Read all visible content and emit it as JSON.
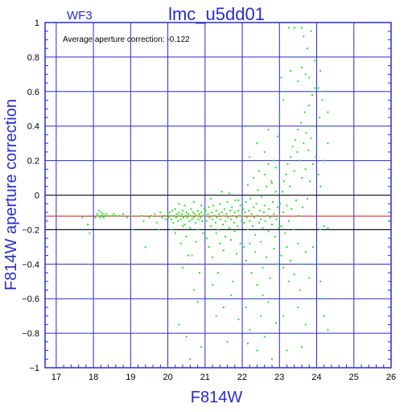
{
  "chart_data": {
    "type": "scatter",
    "title": "lmc_u5dd01",
    "subtitle": "WF3",
    "xlabel": "F814W",
    "ylabel": "F814W aperture correction",
    "annotation": "Average aperture correction: -0.122",
    "mean_line": -0.122,
    "xlim": [
      16.7,
      26.0
    ],
    "ylim": [
      -1,
      1
    ],
    "x_ticks": [
      17,
      18,
      19,
      20,
      21,
      22,
      23,
      24,
      25,
      26
    ],
    "y_ticks": [
      -1,
      -0.8,
      -0.6,
      -0.4,
      -0.2,
      0,
      0.2,
      0.4,
      0.6,
      0.8,
      1
    ],
    "y_tick_labels": [
      "−1",
      "−0.8",
      "−0.6",
      "−0.4",
      "−0.2",
      "0",
      "0.2",
      "0.4",
      "0.6",
      "0.8",
      "1"
    ],
    "grid": true,
    "colors": {
      "frame": "#2a2ad6",
      "points": "#22e822",
      "mean_line": "#e01010",
      "zero_line": "#000000",
      "text": "#2a2ad6"
    },
    "points": [
      [
        17.7,
        -0.13
      ],
      [
        17.85,
        -0.17
      ],
      [
        17.9,
        -0.22
      ],
      [
        18.05,
        -0.13
      ],
      [
        18.1,
        -0.11
      ],
      [
        18.12,
        -0.12
      ],
      [
        18.15,
        -0.09
      ],
      [
        18.18,
        -0.13
      ],
      [
        18.2,
        -0.12
      ],
      [
        18.22,
        -0.1
      ],
      [
        18.25,
        -0.11
      ],
      [
        18.28,
        -0.13
      ],
      [
        18.3,
        -0.12
      ],
      [
        18.35,
        -0.11
      ],
      [
        18.4,
        -0.12
      ],
      [
        18.5,
        -0.12
      ],
      [
        18.55,
        -0.11
      ],
      [
        18.6,
        -0.12
      ],
      [
        18.7,
        -0.12
      ],
      [
        18.8,
        -0.11
      ],
      [
        18.9,
        -0.13
      ],
      [
        19.0,
        -0.12
      ],
      [
        19.05,
        -0.2
      ],
      [
        19.3,
        -0.12
      ],
      [
        19.35,
        -0.15
      ],
      [
        19.4,
        -0.3
      ],
      [
        19.5,
        -0.13
      ],
      [
        19.55,
        -0.12
      ],
      [
        19.65,
        -0.11
      ],
      [
        19.7,
        -0.16
      ],
      [
        19.75,
        -0.2
      ],
      [
        19.8,
        -0.1
      ],
      [
        19.85,
        -0.13
      ],
      [
        19.9,
        -0.12
      ],
      [
        19.95,
        -0.14
      ],
      [
        20.0,
        -0.11
      ],
      [
        20.02,
        -0.13
      ],
      [
        20.05,
        -0.1
      ],
      [
        20.08,
        -0.12
      ],
      [
        20.1,
        -0.14
      ],
      [
        20.12,
        -0.09
      ],
      [
        20.15,
        -0.16
      ],
      [
        20.18,
        -0.12
      ],
      [
        20.2,
        -0.08
      ],
      [
        20.22,
        -0.13
      ],
      [
        20.25,
        -0.11
      ],
      [
        20.28,
        -0.15
      ],
      [
        20.3,
        -0.1
      ],
      [
        20.32,
        -0.12
      ],
      [
        20.35,
        -0.14
      ],
      [
        20.38,
        -0.11
      ],
      [
        20.4,
        -0.09
      ],
      [
        20.42,
        -0.13
      ],
      [
        20.45,
        -0.17
      ],
      [
        20.48,
        -0.12
      ],
      [
        20.5,
        -0.1
      ],
      [
        20.52,
        -0.13
      ],
      [
        20.55,
        -0.11
      ],
      [
        20.58,
        -0.15
      ],
      [
        20.6,
        -0.12
      ],
      [
        20.62,
        -0.08
      ],
      [
        20.65,
        -0.14
      ],
      [
        20.68,
        -0.1
      ],
      [
        20.7,
        -0.13
      ],
      [
        20.72,
        -0.11
      ],
      [
        20.75,
        -0.16
      ],
      [
        20.78,
        -0.12
      ],
      [
        20.8,
        -0.09
      ],
      [
        20.82,
        -0.14
      ],
      [
        20.85,
        -0.11
      ],
      [
        20.88,
        -0.13
      ],
      [
        20.9,
        -0.1
      ],
      [
        20.92,
        -0.15
      ],
      [
        20.95,
        -0.12
      ],
      [
        20.98,
        -0.08
      ],
      [
        20.1,
        -0.2
      ],
      [
        20.2,
        -0.22
      ],
      [
        20.3,
        -0.05
      ],
      [
        20.35,
        -0.28
      ],
      [
        20.4,
        -0.18
      ],
      [
        20.45,
        -0.06
      ],
      [
        20.5,
        -0.24
      ],
      [
        20.55,
        -0.35
      ],
      [
        20.6,
        -0.19
      ],
      [
        20.7,
        -0.04
      ],
      [
        20.75,
        -0.27
      ],
      [
        20.8,
        -0.2
      ],
      [
        20.85,
        -0.45
      ],
      [
        20.9,
        -0.06
      ],
      [
        20.95,
        -0.22
      ],
      [
        20.3,
        -0.75
      ],
      [
        20.5,
        -0.82
      ],
      [
        20.6,
        -0.95
      ],
      [
        20.7,
        -0.55
      ],
      [
        20.8,
        -0.62
      ],
      [
        20.4,
        -0.42
      ],
      [
        20.9,
        -0.88
      ],
      [
        20.65,
        -0.35
      ],
      [
        21.0,
        -0.12
      ],
      [
        21.02,
        -0.09
      ],
      [
        21.05,
        -0.15
      ],
      [
        21.08,
        -0.11
      ],
      [
        21.1,
        -0.07
      ],
      [
        21.12,
        -0.13
      ],
      [
        21.15,
        -0.18
      ],
      [
        21.18,
        -0.1
      ],
      [
        21.2,
        -0.14
      ],
      [
        21.22,
        -0.06
      ],
      [
        21.25,
        -0.12
      ],
      [
        21.28,
        -0.16
      ],
      [
        21.3,
        -0.09
      ],
      [
        21.32,
        -0.13
      ],
      [
        21.35,
        -0.2
      ],
      [
        21.38,
        -0.11
      ],
      [
        21.4,
        -0.05
      ],
      [
        21.42,
        -0.14
      ],
      [
        21.45,
        -0.1
      ],
      [
        21.48,
        -0.17
      ],
      [
        21.5,
        -0.12
      ],
      [
        21.52,
        -0.08
      ],
      [
        21.55,
        -0.15
      ],
      [
        21.58,
        -0.11
      ],
      [
        21.6,
        -0.04
      ],
      [
        21.62,
        -0.13
      ],
      [
        21.65,
        -0.19
      ],
      [
        21.68,
        -0.09
      ],
      [
        21.7,
        -0.14
      ],
      [
        21.72,
        -0.07
      ],
      [
        21.75,
        -0.12
      ],
      [
        21.78,
        -0.16
      ],
      [
        21.8,
        -0.1
      ],
      [
        21.82,
        -0.03
      ],
      [
        21.85,
        -0.13
      ],
      [
        21.88,
        -0.18
      ],
      [
        21.9,
        -0.09
      ],
      [
        21.92,
        -0.12
      ],
      [
        21.95,
        -0.06
      ],
      [
        21.98,
        -0.15
      ],
      [
        21.05,
        -0.25
      ],
      [
        21.1,
        -0.3
      ],
      [
        21.15,
        -0.02
      ],
      [
        21.2,
        -0.36
      ],
      [
        21.3,
        -0.22
      ],
      [
        21.35,
        -0.45
      ],
      [
        21.4,
        -0.28
      ],
      [
        21.45,
        0.02
      ],
      [
        21.5,
        -0.32
      ],
      [
        21.55,
        -0.24
      ],
      [
        21.6,
        -0.4
      ],
      [
        21.65,
        0.01
      ],
      [
        21.7,
        -0.26
      ],
      [
        21.75,
        -0.5
      ],
      [
        21.8,
        -0.21
      ],
      [
        21.85,
        -0.34
      ],
      [
        21.9,
        -0.03
      ],
      [
        21.95,
        -0.28
      ],
      [
        21.1,
        -0.6
      ],
      [
        21.3,
        -0.7
      ],
      [
        21.5,
        -0.65
      ],
      [
        21.7,
        -0.58
      ],
      [
        21.9,
        -0.72
      ],
      [
        21.2,
        -0.52
      ],
      [
        21.6,
        -0.85
      ],
      [
        22.0,
        -0.12
      ],
      [
        22.02,
        -0.08
      ],
      [
        22.05,
        -0.16
      ],
      [
        22.08,
        -0.1
      ],
      [
        22.1,
        -0.04
      ],
      [
        22.12,
        -0.13
      ],
      [
        22.15,
        -0.2
      ],
      [
        22.18,
        -0.09
      ],
      [
        22.2,
        -0.15
      ],
      [
        22.22,
        -0.02
      ],
      [
        22.25,
        -0.11
      ],
      [
        22.28,
        -0.18
      ],
      [
        22.3,
        -0.07
      ],
      [
        22.32,
        -0.13
      ],
      [
        22.35,
        -0.23
      ],
      [
        22.38,
        -0.05
      ],
      [
        22.4,
        -0.12
      ],
      [
        22.42,
        0.03
      ],
      [
        22.45,
        -0.16
      ],
      [
        22.48,
        -0.09
      ],
      [
        22.5,
        -0.14
      ],
      [
        22.52,
        -0.01
      ],
      [
        22.55,
        -0.19
      ],
      [
        22.58,
        -0.1
      ],
      [
        22.6,
        -0.06
      ],
      [
        22.62,
        -0.15
      ],
      [
        22.65,
        0.05
      ],
      [
        22.68,
        -0.12
      ],
      [
        22.7,
        -0.21
      ],
      [
        22.72,
        -0.08
      ],
      [
        22.75,
        -0.13
      ],
      [
        22.78,
        0.08
      ],
      [
        22.8,
        -0.17
      ],
      [
        22.82,
        -0.04
      ],
      [
        22.85,
        -0.11
      ],
      [
        22.88,
        -0.24
      ],
      [
        22.9,
        0.02
      ],
      [
        22.92,
        -0.14
      ],
      [
        22.95,
        -0.07
      ],
      [
        22.98,
        -0.19
      ],
      [
        22.05,
        -0.3
      ],
      [
        22.1,
        -0.38
      ],
      [
        22.15,
        0.06
      ],
      [
        22.2,
        -0.28
      ],
      [
        22.25,
        -0.45
      ],
      [
        22.3,
        0.1
      ],
      [
        22.35,
        -0.33
      ],
      [
        22.4,
        -0.52
      ],
      [
        22.45,
        0.14
      ],
      [
        22.5,
        -0.27
      ],
      [
        22.55,
        -0.42
      ],
      [
        22.6,
        0.12
      ],
      [
        22.65,
        -0.36
      ],
      [
        22.7,
        0.18
      ],
      [
        22.75,
        -0.48
      ],
      [
        22.8,
        0.07
      ],
      [
        22.85,
        -0.31
      ],
      [
        22.9,
        0.16
      ],
      [
        22.95,
        -0.4
      ],
      [
        22.1,
        -0.65
      ],
      [
        22.2,
        -0.78
      ],
      [
        22.3,
        -0.6
      ],
      [
        22.4,
        -0.9
      ],
      [
        22.5,
        -0.7
      ],
      [
        22.6,
        -0.82
      ],
      [
        22.7,
        -0.62
      ],
      [
        22.8,
        -0.95
      ],
      [
        22.9,
        -0.74
      ],
      [
        22.15,
        -0.86
      ],
      [
        22.55,
        -0.58
      ],
      [
        22.2,
        0.22
      ],
      [
        22.4,
        0.3
      ],
      [
        22.6,
        0.25
      ],
      [
        22.7,
        0.38
      ],
      [
        22.85,
        0.2
      ],
      [
        22.95,
        0.34
      ],
      [
        22.3,
        0.4
      ],
      [
        23.0,
        -0.12
      ],
      [
        23.02,
        -0.05
      ],
      [
        23.05,
        -0.18
      ],
      [
        23.08,
        0.02
      ],
      [
        23.1,
        -0.1
      ],
      [
        23.12,
        0.08
      ],
      [
        23.15,
        -0.22
      ],
      [
        23.18,
        0.12
      ],
      [
        23.2,
        -0.06
      ],
      [
        23.22,
        0.18
      ],
      [
        23.25,
        -0.15
      ],
      [
        23.28,
        0.05
      ],
      [
        23.3,
        0.22
      ],
      [
        23.32,
        -0.08
      ],
      [
        23.35,
        0.28
      ],
      [
        23.38,
        -0.2
      ],
      [
        23.4,
        0.14
      ],
      [
        23.42,
        0.32
      ],
      [
        23.45,
        -0.03
      ],
      [
        23.48,
        0.25
      ],
      [
        23.5,
        0.38
      ],
      [
        23.52,
        -0.12
      ],
      [
        23.55,
        0.2
      ],
      [
        23.58,
        0.42
      ],
      [
        23.6,
        0.1
      ],
      [
        23.62,
        -0.07
      ],
      [
        23.65,
        0.3
      ],
      [
        23.68,
        0.48
      ],
      [
        23.7,
        0.15
      ],
      [
        23.72,
        0.36
      ],
      [
        23.75,
        -0.02
      ],
      [
        23.78,
        0.26
      ],
      [
        23.8,
        0.52
      ],
      [
        23.82,
        0.08
      ],
      [
        23.85,
        0.33
      ],
      [
        23.88,
        0.58
      ],
      [
        23.9,
        0.18
      ],
      [
        23.92,
        0.4
      ],
      [
        23.95,
        0.62
      ],
      [
        23.98,
        0.22
      ],
      [
        23.05,
        -0.35
      ],
      [
        23.1,
        -0.42
      ],
      [
        23.2,
        -0.3
      ],
      [
        23.25,
        -0.5
      ],
      [
        23.3,
        -0.38
      ],
      [
        23.4,
        -0.46
      ],
      [
        23.5,
        -0.28
      ],
      [
        23.55,
        -0.55
      ],
      [
        23.6,
        -0.4
      ],
      [
        23.7,
        -0.33
      ],
      [
        23.8,
        -0.48
      ],
      [
        23.9,
        -0.3
      ],
      [
        23.1,
        -0.7
      ],
      [
        23.3,
        -0.8
      ],
      [
        23.5,
        -0.65
      ],
      [
        23.7,
        -0.75
      ],
      [
        23.9,
        -0.6
      ],
      [
        23.2,
        -0.9
      ],
      [
        23.6,
        -0.88
      ],
      [
        23.0,
        0.45
      ],
      [
        23.05,
        0.68
      ],
      [
        23.1,
        0.55
      ],
      [
        23.2,
        0.6
      ],
      [
        23.3,
        0.72
      ],
      [
        23.4,
        0.97
      ],
      [
        23.5,
        0.66
      ],
      [
        23.55,
        0.8
      ],
      [
        23.6,
        0.74
      ],
      [
        23.65,
        0.92
      ],
      [
        23.7,
        0.7
      ],
      [
        23.75,
        0.85
      ],
      [
        23.8,
        0.68
      ],
      [
        23.85,
        0.95
      ],
      [
        23.9,
        0.6
      ],
      [
        23.95,
        0.78
      ],
      [
        23.6,
        0.97
      ],
      [
        23.25,
        0.97
      ],
      [
        24.0,
        0.28
      ],
      [
        24.05,
        0.12
      ],
      [
        24.08,
        0.45
      ],
      [
        24.1,
        0.05
      ],
      [
        24.15,
        0.55
      ],
      [
        24.2,
        0.2
      ],
      [
        24.25,
        0.6
      ],
      [
        24.3,
        0.3
      ],
      [
        24.05,
        -0.4
      ],
      [
        24.1,
        -0.5
      ],
      [
        24.15,
        -0.6
      ],
      [
        24.2,
        -0.7
      ],
      [
        24.3,
        -0.78
      ],
      [
        24.1,
        -0.2
      ],
      [
        24.2,
        -0.18
      ],
      [
        24.3,
        -0.19
      ],
      [
        24.05,
        0.62
      ],
      [
        24.2,
        0.4
      ],
      [
        24.3,
        0.48
      ],
      [
        24.1,
        0.72
      ]
    ]
  }
}
